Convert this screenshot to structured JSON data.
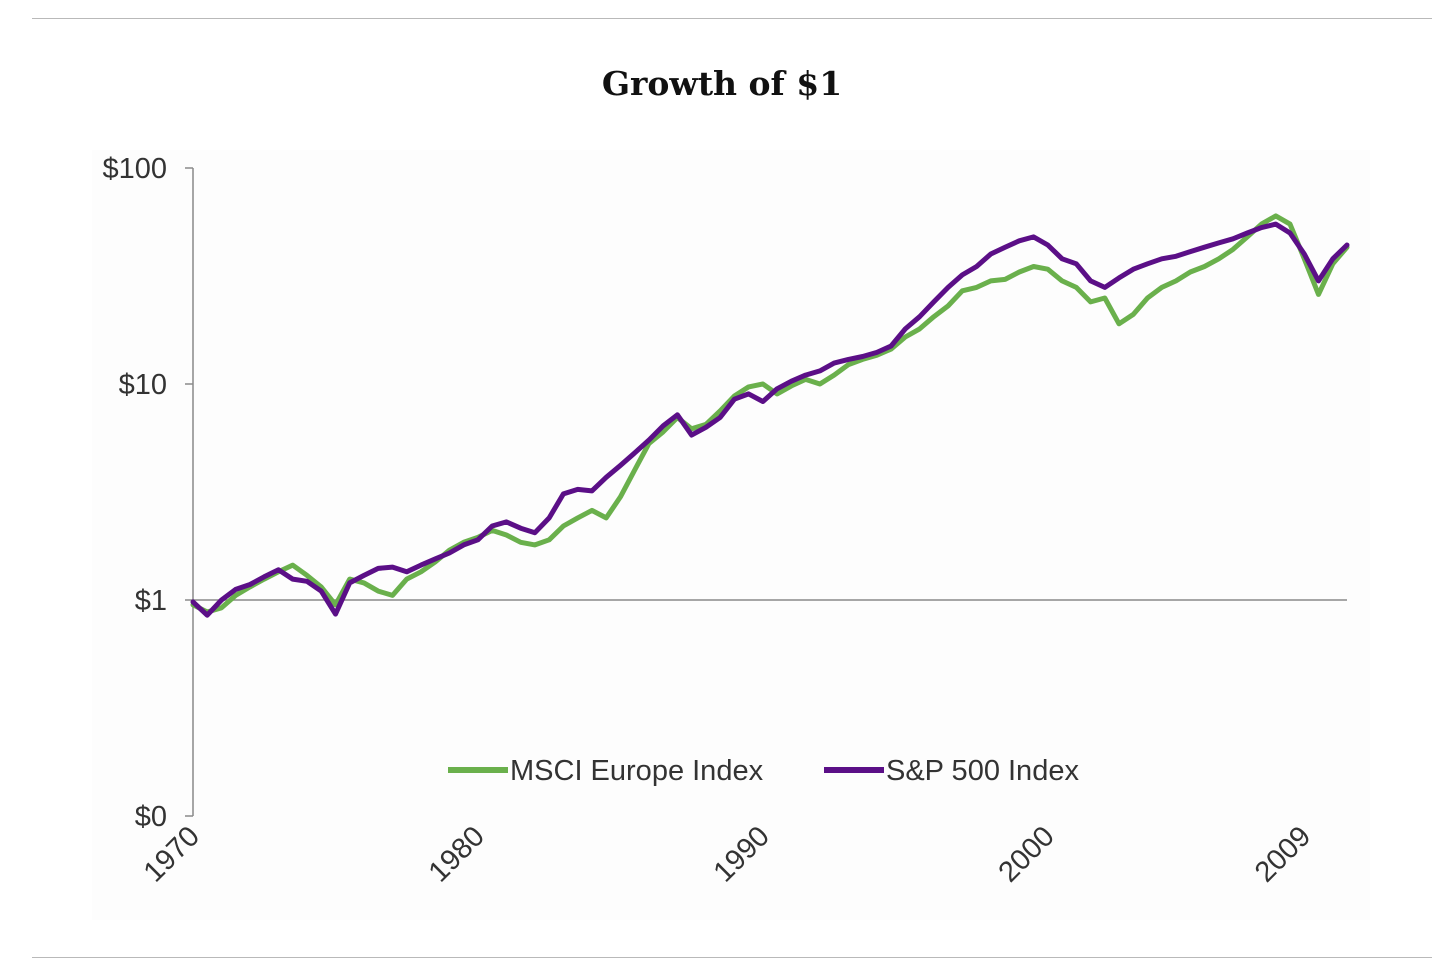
{
  "chart_data": {
    "type": "line",
    "title": "Growth of $1",
    "xlabel": "",
    "ylabel": "",
    "y_scale": "log",
    "ylim": [
      0.1,
      100
    ],
    "xlim": [
      1970,
      2010.5
    ],
    "x_tick_labels": [
      {
        "value": 1970,
        "label": "1970"
      },
      {
        "value": 1980,
        "label": "1980"
      },
      {
        "value": 1990,
        "label": "1990"
      },
      {
        "value": 2000,
        "label": "2000"
      },
      {
        "value": 2009,
        "label": "2009"
      }
    ],
    "y_tick_labels": [
      {
        "value": 100,
        "label": "$100"
      },
      {
        "value": 10,
        "label": "$10"
      },
      {
        "value": 1,
        "label": "$1"
      },
      {
        "value": 0.1,
        "label": "$0"
      }
    ],
    "reference_line": {
      "value": 1
    },
    "grid": false,
    "legend_position": "bottom",
    "series": [
      {
        "name": "MSCI Europe Index",
        "color": "#6ab04c",
        "x": [
          1970.0,
          1970.5,
          1971.0,
          1971.5,
          1972.0,
          1972.5,
          1973.0,
          1973.5,
          1974.0,
          1974.5,
          1975.0,
          1975.5,
          1976.0,
          1976.5,
          1977.0,
          1977.5,
          1978.0,
          1978.5,
          1979.0,
          1979.5,
          1980.0,
          1980.5,
          1981.0,
          1981.5,
          1982.0,
          1982.5,
          1983.0,
          1983.5,
          1984.0,
          1984.5,
          1985.0,
          1985.5,
          1986.0,
          1986.5,
          1987.0,
          1987.5,
          1988.0,
          1988.5,
          1989.0,
          1989.5,
          1990.0,
          1990.5,
          1991.0,
          1991.5,
          1992.0,
          1992.5,
          1993.0,
          1993.5,
          1994.0,
          1994.5,
          1995.0,
          1995.5,
          1996.0,
          1996.5,
          1997.0,
          1997.5,
          1998.0,
          1998.5,
          1999.0,
          1999.5,
          2000.0,
          2000.5,
          2001.0,
          2001.5,
          2002.0,
          2002.5,
          2003.0,
          2003.5,
          2004.0,
          2004.5,
          2005.0,
          2005.5,
          2006.0,
          2006.5,
          2007.0,
          2007.5,
          2008.0,
          2008.5,
          2009.0,
          2009.5,
          2010.0,
          2010.5
        ],
        "values": [
          0.95,
          0.88,
          0.92,
          1.05,
          1.15,
          1.25,
          1.35,
          1.45,
          1.3,
          1.15,
          0.95,
          1.25,
          1.2,
          1.1,
          1.05,
          1.25,
          1.35,
          1.5,
          1.7,
          1.85,
          1.95,
          2.1,
          2.0,
          1.85,
          1.8,
          1.9,
          2.2,
          2.4,
          2.6,
          2.4,
          3.0,
          4.0,
          5.3,
          6.0,
          7.0,
          6.2,
          6.5,
          7.5,
          8.8,
          9.7,
          10.0,
          9.0,
          9.8,
          10.5,
          10.0,
          11.0,
          12.3,
          13.0,
          13.6,
          14.5,
          16.5,
          18.0,
          20.5,
          23.0,
          27.0,
          28.0,
          30.0,
          30.5,
          33.0,
          35.0,
          34.0,
          30.0,
          28.0,
          24.0,
          25.0,
          19.0,
          21.0,
          25.0,
          28.0,
          30.0,
          33.0,
          35.0,
          38.0,
          42.0,
          48.0,
          55.0,
          60.0,
          55.0,
          38.0,
          26.0,
          36.0,
          43.0
        ]
      },
      {
        "name": "S&P 500 Index",
        "color": "#5b0f87",
        "x": [
          1970.0,
          1970.5,
          1971.0,
          1971.5,
          1972.0,
          1972.5,
          1973.0,
          1973.5,
          1974.0,
          1974.5,
          1975.0,
          1975.5,
          1976.0,
          1976.5,
          1977.0,
          1977.5,
          1978.0,
          1978.5,
          1979.0,
          1979.5,
          1980.0,
          1980.5,
          1981.0,
          1981.5,
          1982.0,
          1982.5,
          1983.0,
          1983.5,
          1984.0,
          1984.5,
          1985.0,
          1985.5,
          1986.0,
          1986.5,
          1987.0,
          1987.5,
          1988.0,
          1988.5,
          1989.0,
          1989.5,
          1990.0,
          1990.5,
          1991.0,
          1991.5,
          1992.0,
          1992.5,
          1993.0,
          1993.5,
          1994.0,
          1994.5,
          1995.0,
          1995.5,
          1996.0,
          1996.5,
          1997.0,
          1997.5,
          1998.0,
          1998.5,
          1999.0,
          1999.5,
          2000.0,
          2000.5,
          2001.0,
          2001.5,
          2002.0,
          2002.5,
          2003.0,
          2003.5,
          2004.0,
          2004.5,
          2005.0,
          2005.5,
          2006.0,
          2006.5,
          2007.0,
          2007.5,
          2008.0,
          2008.5,
          2009.0,
          2009.5,
          2010.0,
          2010.5
        ],
        "values": [
          0.98,
          0.85,
          1.0,
          1.12,
          1.18,
          1.28,
          1.38,
          1.25,
          1.22,
          1.1,
          0.86,
          1.2,
          1.3,
          1.4,
          1.42,
          1.35,
          1.45,
          1.55,
          1.65,
          1.8,
          1.9,
          2.2,
          2.3,
          2.15,
          2.05,
          2.4,
          3.1,
          3.25,
          3.2,
          3.7,
          4.2,
          4.8,
          5.5,
          6.4,
          7.2,
          5.8,
          6.3,
          7.0,
          8.5,
          9.0,
          8.3,
          9.5,
          10.3,
          11.0,
          11.5,
          12.5,
          13.0,
          13.4,
          14.0,
          15.0,
          18.0,
          20.5,
          24.0,
          28.0,
          32.0,
          35.0,
          40.0,
          43.0,
          46.0,
          48.0,
          44.0,
          38.0,
          36.0,
          30.0,
          28.0,
          31.0,
          34.0,
          36.0,
          38.0,
          39.0,
          41.0,
          43.0,
          45.0,
          47.0,
          50.0,
          53.0,
          55.0,
          50.0,
          40.0,
          30.0,
          38.0,
          44.0
        ]
      }
    ]
  }
}
